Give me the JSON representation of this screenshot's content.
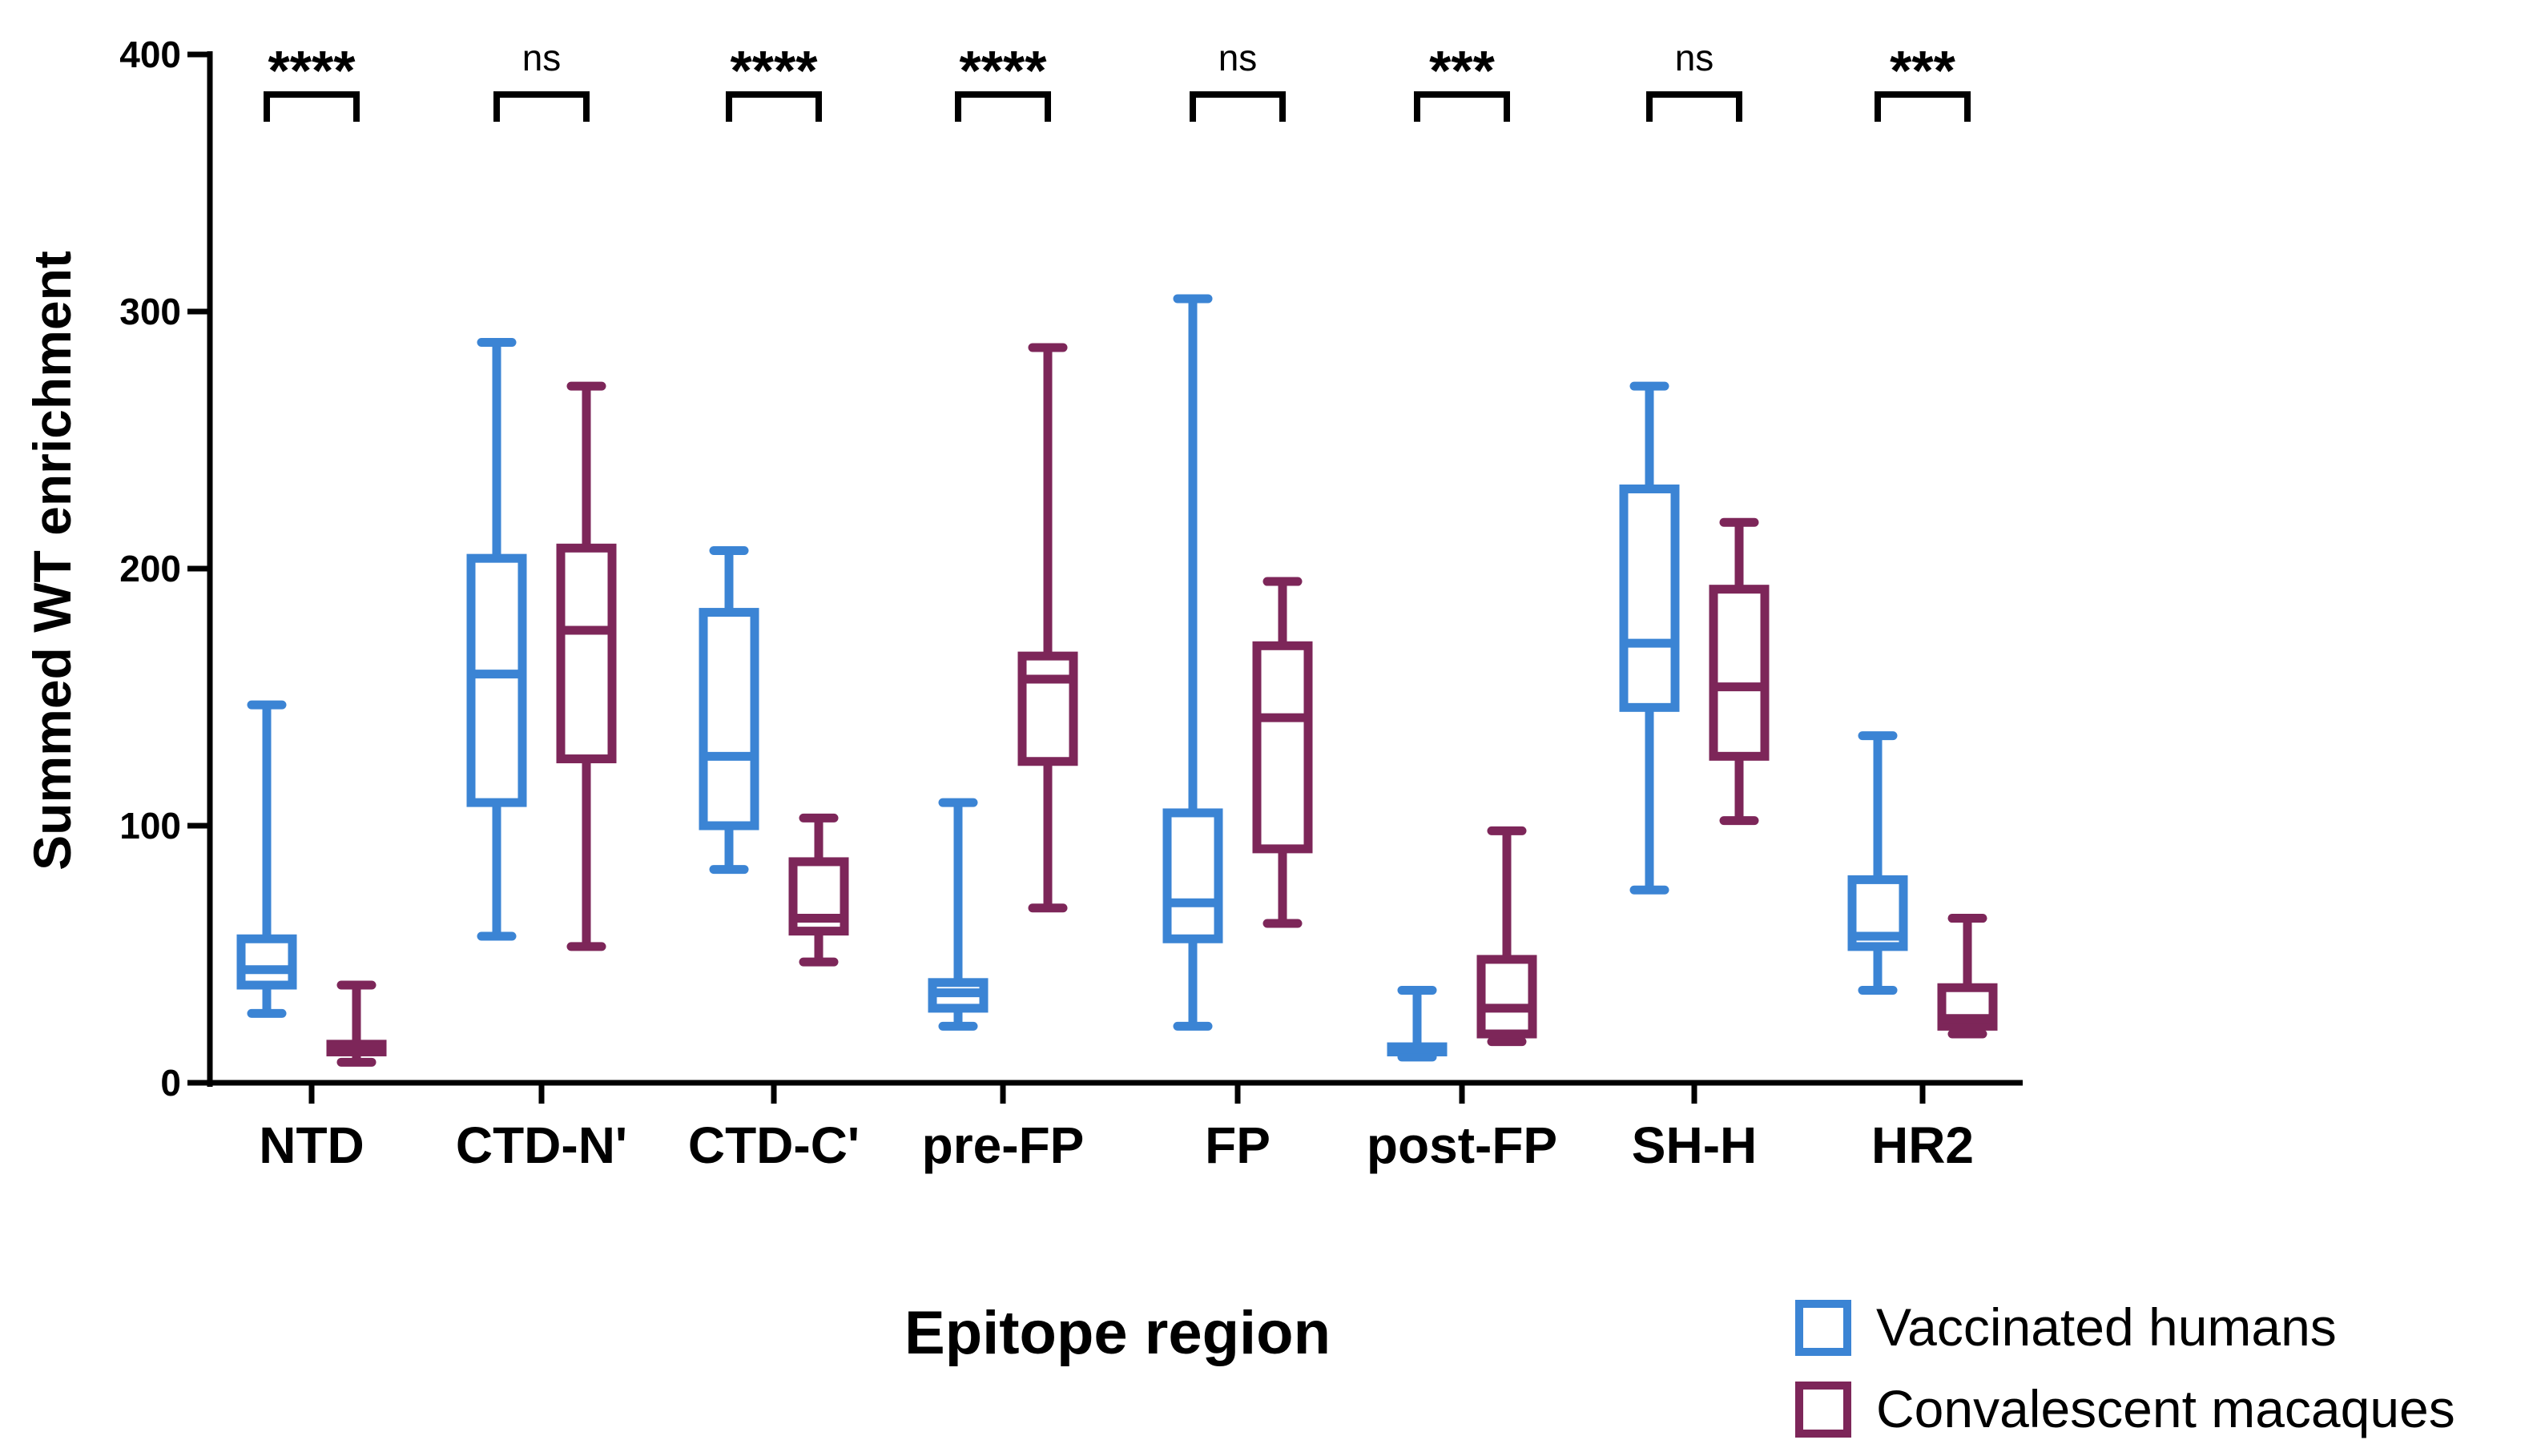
{
  "chart_data": {
    "type": "box",
    "xlabel": "Epitope region",
    "ylabel": "Summed WT enrichment",
    "ylim": [
      0,
      400
    ],
    "yticks": [
      0,
      100,
      200,
      300,
      400
    ],
    "categories": [
      "NTD",
      "CTD-N'",
      "CTD-C'",
      "pre-FP",
      "FP",
      "post-FP",
      "SH-H",
      "HR2"
    ],
    "series": [
      {
        "name": "Vaccinated humans",
        "color": "#3b84d4",
        "boxes": [
          {
            "min": 27,
            "q1": 38,
            "median": 44,
            "q3": 56,
            "max": 147
          },
          {
            "min": 57,
            "q1": 109,
            "median": 159,
            "q3": 204,
            "max": 288
          },
          {
            "min": 83,
            "q1": 100,
            "median": 127,
            "q3": 183,
            "max": 207
          },
          {
            "min": 22,
            "q1": 29,
            "median": 35,
            "q3": 39,
            "max": 109
          },
          {
            "min": 22,
            "q1": 56,
            "median": 70,
            "q3": 105,
            "max": 305
          },
          {
            "min": 10,
            "q1": 12,
            "median": 13,
            "q3": 14,
            "max": 36
          },
          {
            "min": 75,
            "q1": 146,
            "median": 171,
            "q3": 231,
            "max": 271
          },
          {
            "min": 36,
            "q1": 53,
            "median": 57,
            "q3": 79,
            "max": 135
          }
        ]
      },
      {
        "name": "Convalescent macaques",
        "color": "#7d2659",
        "boxes": [
          {
            "min": 8,
            "q1": 12,
            "median": 14,
            "q3": 15,
            "max": 38
          },
          {
            "min": 53,
            "q1": 126,
            "median": 176,
            "q3": 208,
            "max": 271
          },
          {
            "min": 47,
            "q1": 59,
            "median": 64,
            "q3": 86,
            "max": 103
          },
          {
            "min": 68,
            "q1": 125,
            "median": 157,
            "q3": 166,
            "max": 286
          },
          {
            "min": 62,
            "q1": 91,
            "median": 142,
            "q3": 170,
            "max": 195
          },
          {
            "min": 16,
            "q1": 19,
            "median": 29,
            "q3": 48,
            "max": 98
          },
          {
            "min": 102,
            "q1": 127,
            "median": 154,
            "q3": 192,
            "max": 218
          },
          {
            "min": 19,
            "q1": 22,
            "median": 25,
            "q3": 37,
            "max": 64
          }
        ]
      }
    ],
    "significance": [
      "****",
      "ns",
      "****",
      "****",
      "ns",
      "***",
      "ns",
      "***"
    ],
    "legend": {
      "placement": "bottom-right"
    }
  }
}
